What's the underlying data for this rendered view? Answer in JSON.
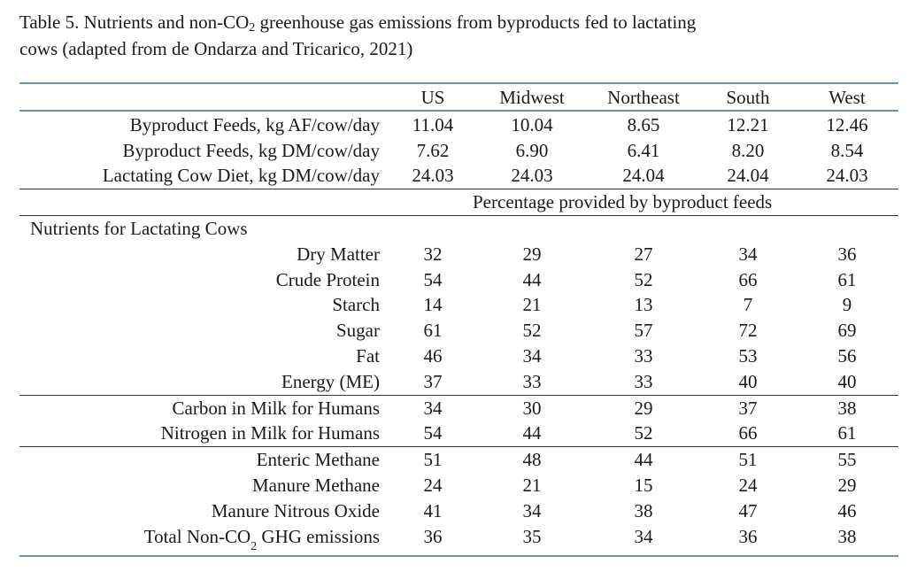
{
  "caption": {
    "line1_a": "Table 5.  Nutrients and non-CO",
    "line1_sub": "2",
    "line1_b": " greenhouse gas emissions from byproducts fed to lactating",
    "line2": "cows (adapted from de Ondarza and Tricarico, 2021)"
  },
  "columns": [
    "US",
    "Midwest",
    "Northeast",
    "South",
    "West"
  ],
  "summary_rows": [
    {
      "label": "Byproduct Feeds, kg AF/cow/day",
      "values": [
        "11.04",
        "10.04",
        "8.65",
        "12.21",
        "12.46"
      ]
    },
    {
      "label": "Byproduct Feeds, kg DM/cow/day",
      "values": [
        "7.62",
        "6.90",
        "6.41",
        "8.20",
        "8.54"
      ]
    },
    {
      "label": "Lactating Cow Diet, kg DM/cow/day",
      "values": [
        "24.03",
        "24.03",
        "24.04",
        "24.04",
        "24.03"
      ]
    }
  ],
  "percentage_heading": "Percentage provided by byproduct feeds",
  "section_heading": "Nutrients for Lactating Cows",
  "nutrient_rows": [
    {
      "label": "Dry Matter",
      "values": [
        "32",
        "29",
        "27",
        "34",
        "36"
      ]
    },
    {
      "label": "Crude Protein",
      "values": [
        "54",
        "44",
        "52",
        "66",
        "61"
      ]
    },
    {
      "label": "Starch",
      "values": [
        "14",
        "21",
        "13",
        "7",
        "9"
      ]
    },
    {
      "label": "Sugar",
      "values": [
        "61",
        "52",
        "57",
        "72",
        "69"
      ]
    },
    {
      "label": "Fat",
      "values": [
        "46",
        "34",
        "33",
        "53",
        "56"
      ]
    },
    {
      "label": "Energy (ME)",
      "values": [
        "37",
        "33",
        "33",
        "40",
        "40"
      ]
    }
  ],
  "milk_rows": [
    {
      "label": "Carbon in Milk for Humans",
      "values": [
        "34",
        "30",
        "29",
        "37",
        "38"
      ]
    },
    {
      "label": "Nitrogen in Milk for Humans",
      "values": [
        "54",
        "44",
        "52",
        "66",
        "61"
      ]
    }
  ],
  "emission_rows": [
    {
      "label": "Enteric Methane",
      "values": [
        "51",
        "48",
        "44",
        "51",
        "55"
      ]
    },
    {
      "label": "Manure Methane",
      "values": [
        "24",
        "21",
        "15",
        "24",
        "29"
      ]
    },
    {
      "label": "Manure Nitrous Oxide",
      "values": [
        "41",
        "34",
        "38",
        "47",
        "46"
      ]
    }
  ],
  "total_row": {
    "label_a": "Total Non-CO",
    "label_sub": "2",
    "label_b": " GHG emissions",
    "values": [
      "36",
      "35",
      "34",
      "36",
      "38"
    ]
  }
}
